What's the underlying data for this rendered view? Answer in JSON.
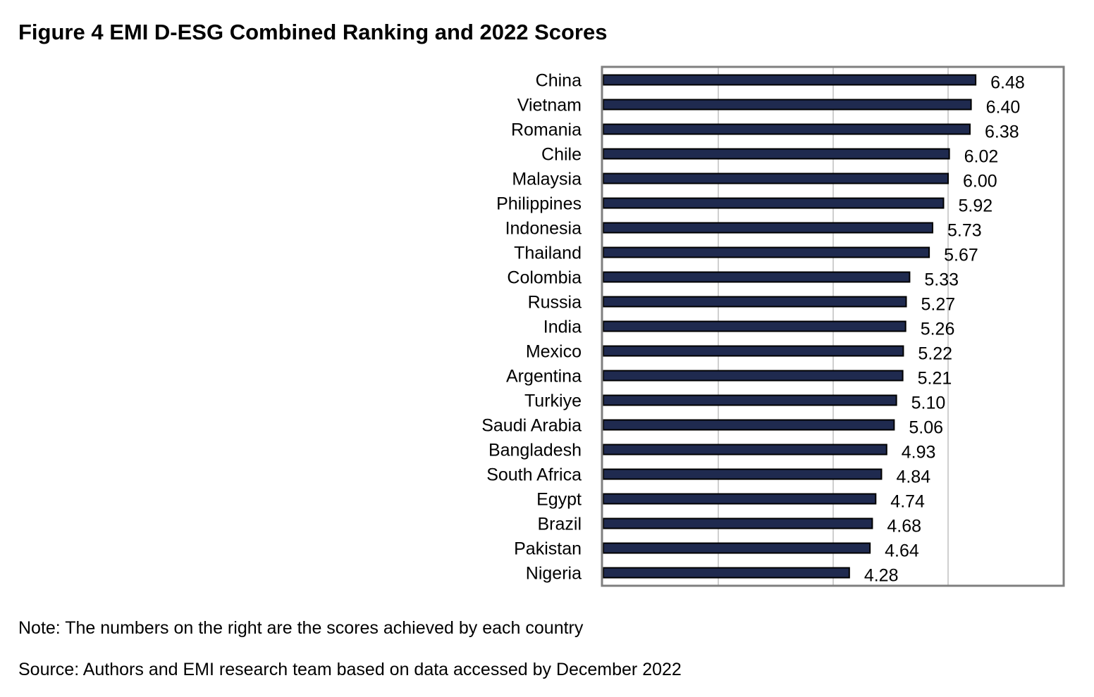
{
  "figure_title": "Figure 4 EMI D-ESG Combined Ranking and 2022 Scores",
  "note": "Note: The numbers on the right are the scores achieved by each country",
  "source": "Source: Authors and EMI research team based on data accessed by December 2022",
  "colors": {
    "bar_fill": "#1f2a4f",
    "bar_stroke": "#000000",
    "frame": "#7f7f7f",
    "grid": "#bfbfbf"
  },
  "chart_data": {
    "type": "bar",
    "orientation": "horizontal",
    "title": "",
    "xlabel": "",
    "ylabel": "",
    "categories": [
      "China",
      "Vietnam",
      "Romania",
      "Chile",
      "Malaysia",
      "Philippines",
      "Indonesia",
      "Thailand",
      "Colombia",
      "Russia",
      "India",
      "Mexico",
      "Argentina",
      "Turkiye",
      "Saudi Arabia",
      "Bangladesh",
      "South Africa",
      "Egypt",
      "Brazil",
      "Pakistan",
      "Nigeria"
    ],
    "values": [
      6.48,
      6.4,
      6.38,
      6.02,
      6.0,
      5.92,
      5.73,
      5.67,
      5.33,
      5.27,
      5.26,
      5.22,
      5.21,
      5.1,
      5.06,
      4.93,
      4.84,
      4.74,
      4.68,
      4.64,
      4.28
    ],
    "value_labels": [
      "6.48",
      "6.40",
      "6.38",
      "6.02",
      "6.00",
      "5.92",
      "5.73",
      "5.67",
      "5.33",
      "5.27",
      "5.26",
      "5.22",
      "5.21",
      "5.10",
      "5.06",
      "4.93",
      "4.84",
      "4.74",
      "4.68",
      "4.64",
      "4.28"
    ],
    "xlim": [
      0,
      8
    ],
    "grid": "vertical",
    "legend": "none"
  }
}
